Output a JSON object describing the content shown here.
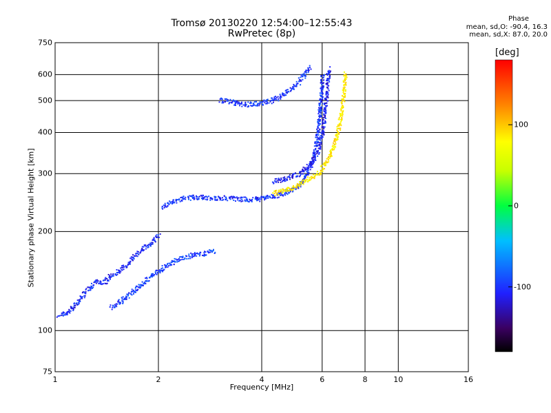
{
  "chart_data": {
    "type": "scatter",
    "title": "Tromsø 20130220 12:54:00–12:55:43",
    "subtitle": "RwPretec (8p)",
    "xlabel": "Frequency [MHz]",
    "ylabel": "Stationary phase Virtual Height [km]",
    "x_scale": "log",
    "y_scale": "log",
    "xlim": [
      1,
      16
    ],
    "ylim": [
      75,
      750
    ],
    "x_ticks": [
      "1",
      "2",
      "4",
      "6",
      "8",
      "10",
      "16"
    ],
    "y_ticks": [
      "75",
      "100",
      "200",
      "300",
      "400",
      "500",
      "600",
      "750"
    ],
    "grid": true,
    "colorbar": {
      "label": "[deg]",
      "range": [
        -180,
        180
      ],
      "ticks": [
        "100",
        "0",
        "-100"
      ]
    },
    "stats": {
      "heading": "Phase",
      "o_line": "mean, sd,O: -90.4, 16.3",
      "x_line": "mean, sd,X:  87.0, 20.0"
    },
    "traces": [
      {
        "name": "o_low",
        "phase": -105,
        "points": [
          [
            1.02,
            112
          ],
          [
            1.05,
            113
          ],
          [
            1.08,
            113
          ],
          [
            1.3,
            141
          ],
          [
            1.35,
            140
          ],
          [
            1.4,
            142
          ],
          [
            1.45,
            148
          ],
          [
            1.5,
            150
          ],
          [
            1.6,
            158
          ],
          [
            1.7,
            170
          ],
          [
            1.8,
            178
          ],
          [
            1.9,
            185
          ],
          [
            2.0,
            195
          ]
        ]
      },
      {
        "name": "o_E2",
        "phase": -95,
        "points": [
          [
            1.45,
            118
          ],
          [
            1.55,
            123
          ],
          [
            1.65,
            130
          ],
          [
            1.8,
            140
          ],
          [
            1.95,
            150
          ],
          [
            2.1,
            158
          ],
          [
            2.3,
            166
          ],
          [
            2.5,
            170
          ],
          [
            2.7,
            172
          ],
          [
            2.9,
            175
          ]
        ]
      },
      {
        "name": "o_F1",
        "phase": -100,
        "points": [
          [
            2.05,
            238
          ],
          [
            2.15,
            246
          ],
          [
            2.3,
            252
          ],
          [
            2.5,
            255
          ],
          [
            2.7,
            255
          ],
          [
            2.9,
            254
          ],
          [
            3.1,
            254
          ],
          [
            3.4,
            252
          ],
          [
            3.7,
            251
          ],
          [
            4.0,
            253
          ],
          [
            4.3,
            256
          ],
          [
            4.6,
            262
          ],
          [
            4.9,
            270
          ],
          [
            5.2,
            282
          ],
          [
            5.4,
            300
          ],
          [
            5.6,
            330
          ],
          [
            5.75,
            370
          ],
          [
            5.85,
            430
          ],
          [
            5.95,
            520
          ],
          [
            6.0,
            600
          ]
        ]
      },
      {
        "name": "o_F2",
        "phase": -110,
        "points": [
          [
            4.3,
            285
          ],
          [
            4.7,
            290
          ],
          [
            5.1,
            300
          ],
          [
            5.5,
            320
          ],
          [
            5.8,
            350
          ],
          [
            6.0,
            400
          ],
          [
            6.1,
            470
          ],
          [
            6.2,
            550
          ],
          [
            6.25,
            630
          ]
        ]
      },
      {
        "name": "o_top",
        "phase": -100,
        "points": [
          [
            3.0,
            505
          ],
          [
            3.3,
            495
          ],
          [
            3.6,
            488
          ],
          [
            3.9,
            492
          ],
          [
            4.2,
            500
          ],
          [
            4.5,
            515
          ],
          [
            4.8,
            540
          ],
          [
            5.1,
            570
          ],
          [
            5.3,
            600
          ],
          [
            5.5,
            635
          ]
        ]
      },
      {
        "name": "x_F",
        "phase": 85,
        "points": [
          [
            4.3,
            262
          ],
          [
            4.7,
            268
          ],
          [
            5.1,
            278
          ],
          [
            5.5,
            290
          ],
          [
            5.9,
            305
          ],
          [
            6.2,
            330
          ],
          [
            6.5,
            370
          ],
          [
            6.7,
            420
          ],
          [
            6.85,
            490
          ],
          [
            6.95,
            560
          ],
          [
            7.0,
            610
          ]
        ]
      }
    ]
  }
}
